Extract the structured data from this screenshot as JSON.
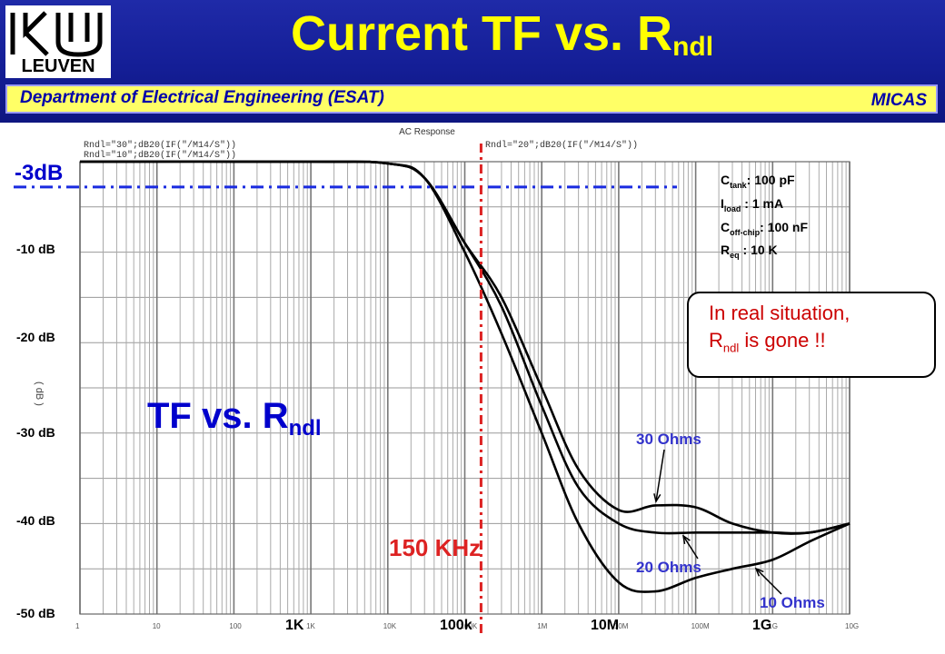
{
  "header": {
    "logo_text": "LEUVEN",
    "title_main": "Current TF vs. R",
    "title_sub": "ndl",
    "department": "Department of Electrical Engineering (ESAT)",
    "group": "MICAS"
  },
  "chart_data": {
    "type": "line",
    "title": "AC Response",
    "xscale": "log",
    "xlim": [
      1,
      10000000000
    ],
    "ylim": [
      -50,
      0
    ],
    "grid": true,
    "y_ticks": [
      "-10 dB",
      "-20 dB",
      "-30 dB",
      "-40 dB",
      "-50 dB"
    ],
    "y_tick_values": [
      -10,
      -20,
      -30,
      -40,
      -50
    ],
    "x_ticks": [
      "1K",
      "100k",
      "10M",
      "1G"
    ],
    "x_tick_values": [
      1000,
      100000,
      10000000,
      1000000000
    ],
    "plot_legend_lines": [
      "Rndl=\"30\";dB20(IF(\"/M14/S\"))",
      "Rndl=\"10\";dB20(IF(\"/M14/S\"))",
      "Rndl=\"20\";dB20(IF(\"/M14/S\"))"
    ],
    "series": [
      {
        "name": "30 Ohms",
        "x": [
          1,
          1000,
          10000,
          30000,
          100000,
          300000,
          1000000,
          3000000,
          10000000,
          30000000,
          100000000,
          300000000,
          1000000000,
          3000000000,
          10000000000
        ],
        "y": [
          0,
          0,
          -0.2,
          -1.8,
          -9,
          -15,
          -25,
          -34,
          -38.5,
          -38,
          -38.2,
          -40,
          -41,
          -41,
          -40
        ]
      },
      {
        "name": "20 Ohms",
        "x": [
          1,
          1000,
          10000,
          30000,
          100000,
          300000,
          1000000,
          3000000,
          10000000,
          30000000,
          100000000,
          300000000,
          1000000000,
          3000000000,
          10000000000
        ],
        "y": [
          0,
          0,
          -0.2,
          -1.8,
          -9,
          -16,
          -27,
          -36,
          -40,
          -41,
          -41,
          -41,
          -41,
          -41,
          -40
        ]
      },
      {
        "name": "10 Ohms",
        "x": [
          1,
          1000,
          10000,
          30000,
          100000,
          300000,
          1000000,
          3000000,
          10000000,
          30000000,
          100000000,
          300000000,
          1000000000,
          3000000000,
          10000000000
        ],
        "y": [
          0,
          0,
          -0.2,
          -1.8,
          -10,
          -19,
          -30,
          -40,
          -46.5,
          -47.5,
          -46,
          -45,
          -44,
          -42,
          -40
        ]
      }
    ],
    "annotations": {
      "minus3db_label": "-3dB",
      "minus3db_value": -3,
      "marker_label": "150 KHz",
      "marker_freq": 150000,
      "label_30": "30 Ohms",
      "label_20": "20 Ohms",
      "label_10": "10 Ohms",
      "tf_label_main": "TF vs. R",
      "tf_label_sub": "ndl"
    }
  },
  "params": [
    {
      "sym": "C",
      "sub": "tank",
      "val": ": 100 pF"
    },
    {
      "sym": "I",
      "sub": "load",
      "val": " : 1 mA"
    },
    {
      "sym": "C",
      "sub": "off-chip",
      "val": ": 100 nF"
    },
    {
      "sym": "R",
      "sub": "eq",
      "val": "  : 10 K"
    }
  ],
  "note": {
    "line1": "In real situation,",
    "line2_main": "R",
    "line2_sub": "ndl",
    "line2_rest": " is gone !!"
  },
  "colors": {
    "header_blue": "#141e96",
    "title_yellow": "#ffff00",
    "dept_bar": "#ffff66",
    "minus3db_line": "#1a2be0",
    "marker_red": "#dd2222",
    "note_red": "#cc0000"
  }
}
